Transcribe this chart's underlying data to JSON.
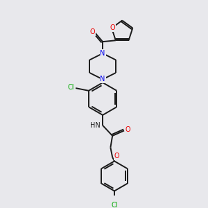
{
  "background_color": "#e8e8ec",
  "bond_color": "#1a1a1a",
  "atom_colors": {
    "N": "#0000ee",
    "O": "#ee0000",
    "Cl": "#00aa00",
    "C": "#1a1a1a",
    "H": "#1a1a1a"
  },
  "figsize": [
    3.0,
    3.0
  ],
  "dpi": 100,
  "lw": 1.4,
  "fs": 7.0
}
